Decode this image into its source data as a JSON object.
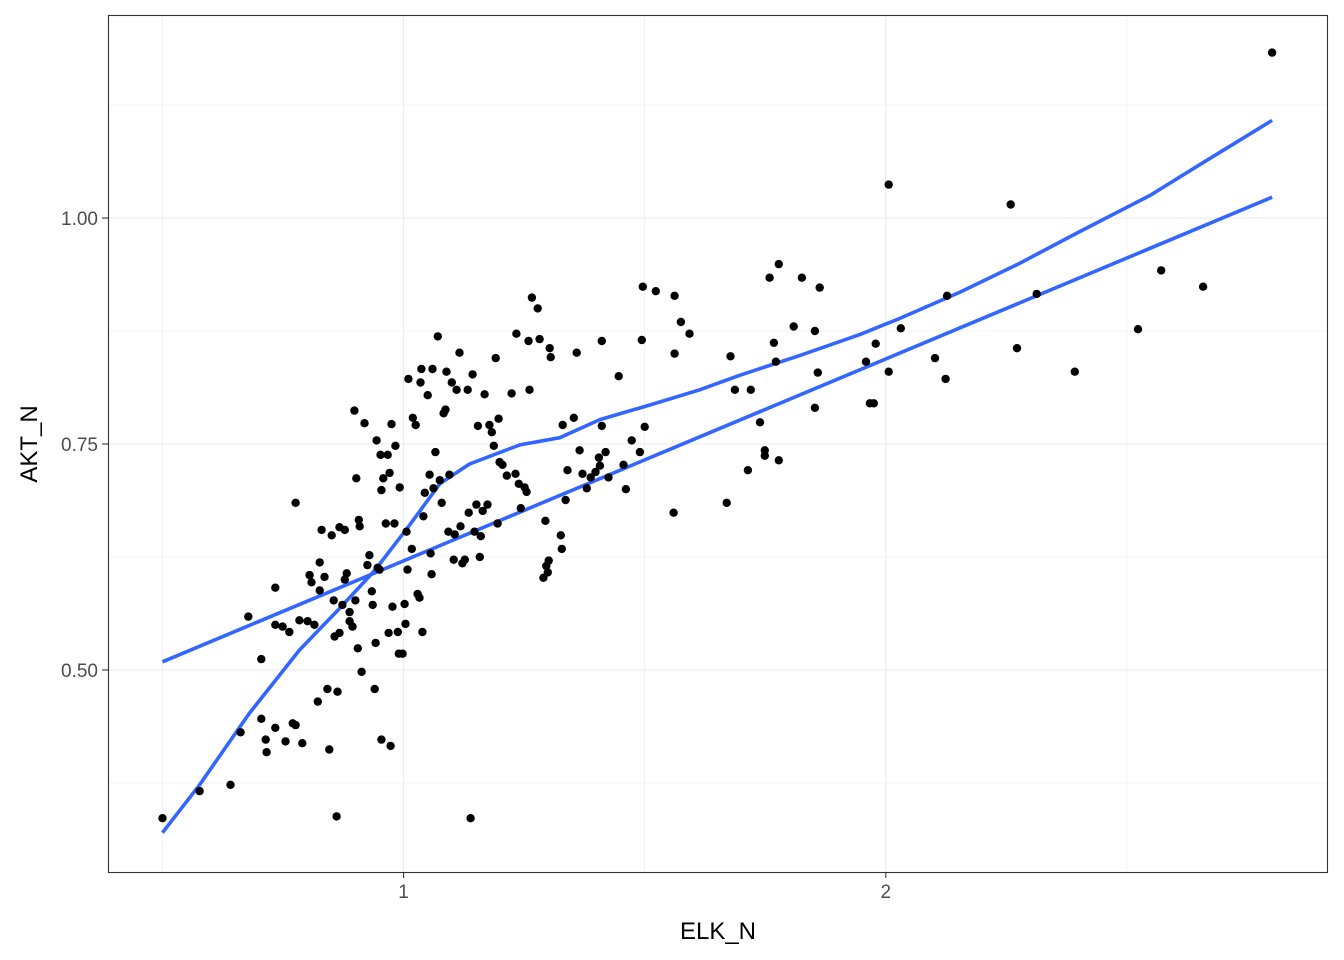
{
  "chart_data": {
    "type": "scatter",
    "title": "",
    "xlabel": "ELK_N",
    "ylabel": "AKT_N",
    "xlim": [
      0.387,
      2.917
    ],
    "ylim": [
      0.2765,
      1.2246
    ],
    "x_ticks": [
      1,
      2
    ],
    "x_tick_labels": [
      "1",
      "2"
    ],
    "x_minor_ticks": [
      0.5,
      1.5,
      2.5
    ],
    "y_ticks": [
      0.5,
      0.75,
      1.0
    ],
    "y_tick_labels": [
      "0.50",
      "0.75",
      "1.00"
    ],
    "y_minor_ticks": [
      0.375,
      0.625,
      0.875,
      1.125
    ],
    "grid": true,
    "legend": "none",
    "colors": {
      "points": "#000000",
      "lines": "#3366FF",
      "grid": "#EBEBEB",
      "border": "#333333"
    },
    "points": [
      [
        0.5,
        0.336
      ],
      [
        0.577,
        0.366
      ],
      [
        0.641,
        0.373
      ],
      [
        0.662,
        0.431
      ],
      [
        0.678,
        0.559
      ],
      [
        0.705,
        0.512
      ],
      [
        0.705,
        0.446
      ],
      [
        0.714,
        0.423
      ],
      [
        0.716,
        0.409
      ],
      [
        0.734,
        0.591
      ],
      [
        0.734,
        0.55
      ],
      [
        0.734,
        0.436
      ],
      [
        0.749,
        0.548
      ],
      [
        0.755,
        0.421
      ],
      [
        0.763,
        0.542
      ],
      [
        0.77,
        0.441
      ],
      [
        0.776,
        0.685
      ],
      [
        0.776,
        0.439
      ],
      [
        0.784,
        0.555
      ],
      [
        0.79,
        0.419
      ],
      [
        0.801,
        0.554
      ],
      [
        0.805,
        0.605
      ],
      [
        0.809,
        0.597
      ],
      [
        0.815,
        0.55
      ],
      [
        0.822,
        0.465
      ],
      [
        0.826,
        0.619
      ],
      [
        0.826,
        0.588
      ],
      [
        0.83,
        0.655
      ],
      [
        0.836,
        0.603
      ],
      [
        0.842,
        0.479
      ],
      [
        0.846,
        0.412
      ],
      [
        0.851,
        0.649
      ],
      [
        0.855,
        0.577
      ],
      [
        0.857,
        0.537
      ],
      [
        0.861,
        0.338
      ],
      [
        0.863,
        0.476
      ],
      [
        0.867,
        0.658
      ],
      [
        0.867,
        0.541
      ],
      [
        0.873,
        0.572
      ],
      [
        0.878,
        0.655
      ],
      [
        0.878,
        0.6
      ],
      [
        0.882,
        0.607
      ],
      [
        0.888,
        0.564
      ],
      [
        0.888,
        0.554
      ],
      [
        0.894,
        0.548
      ],
      [
        0.898,
        0.787
      ],
      [
        0.9,
        0.577
      ],
      [
        0.902,
        0.712
      ],
      [
        0.905,
        0.524
      ],
      [
        0.907,
        0.666
      ],
      [
        0.909,
        0.659
      ],
      [
        0.913,
        0.498
      ],
      [
        0.919,
        0.773
      ],
      [
        0.925,
        0.616
      ],
      [
        0.929,
        0.627
      ],
      [
        0.934,
        0.587
      ],
      [
        0.936,
        0.572
      ],
      [
        0.94,
        0.479
      ],
      [
        0.942,
        0.53
      ],
      [
        0.944,
        0.754
      ],
      [
        0.946,
        0.613
      ],
      [
        0.95,
        0.611
      ],
      [
        0.952,
        0.738
      ],
      [
        0.954,
        0.699
      ],
      [
        0.954,
        0.423
      ],
      [
        0.958,
        0.712
      ],
      [
        0.963,
        0.662
      ],
      [
        0.967,
        0.738
      ],
      [
        0.969,
        0.541
      ],
      [
        0.971,
        0.718
      ],
      [
        0.973,
        0.416
      ],
      [
        0.975,
        0.772
      ],
      [
        0.977,
        0.57
      ],
      [
        0.981,
        0.662
      ],
      [
        0.983,
        0.748
      ],
      [
        0.988,
        0.542
      ],
      [
        0.99,
        0.518
      ],
      [
        0.992,
        0.702
      ],
      [
        0.998,
        0.518
      ],
      [
        1.002,
        0.573
      ],
      [
        1.004,
        0.551
      ],
      [
        1.006,
        0.653
      ],
      [
        1.008,
        0.611
      ],
      [
        1.01,
        0.822
      ],
      [
        1.017,
        0.634
      ],
      [
        1.019,
        0.779
      ],
      [
        1.025,
        0.771
      ],
      [
        1.029,
        0.584
      ],
      [
        1.033,
        0.58
      ],
      [
        1.035,
        0.818
      ],
      [
        1.037,
        0.833
      ],
      [
        1.039,
        0.542
      ],
      [
        1.041,
        0.67
      ],
      [
        1.044,
        0.696
      ],
      [
        1.05,
        0.804
      ],
      [
        1.054,
        0.716
      ],
      [
        1.056,
        0.629
      ],
      [
        1.058,
        0.606
      ],
      [
        1.06,
        0.833
      ],
      [
        1.062,
        0.701
      ],
      [
        1.066,
        0.741
      ],
      [
        1.071,
        0.869
      ],
      [
        1.075,
        0.71
      ],
      [
        1.079,
        0.685
      ],
      [
        1.083,
        0.784
      ],
      [
        1.087,
        0.788
      ],
      [
        1.089,
        0.83
      ],
      [
        1.093,
        0.653
      ],
      [
        1.095,
        0.716
      ],
      [
        1.1,
        0.818
      ],
      [
        1.104,
        0.622
      ],
      [
        1.106,
        0.65
      ],
      [
        1.11,
        0.81
      ],
      [
        1.116,
        0.851
      ],
      [
        1.118,
        0.659
      ],
      [
        1.122,
        0.618
      ],
      [
        1.127,
        0.622
      ],
      [
        1.133,
        0.81
      ],
      [
        1.135,
        0.674
      ],
      [
        1.139,
        0.336
      ],
      [
        1.143,
        0.827
      ],
      [
        1.147,
        0.653
      ],
      [
        1.151,
        0.683
      ],
      [
        1.154,
        0.77
      ],
      [
        1.158,
        0.625
      ],
      [
        1.16,
        0.648
      ],
      [
        1.164,
        0.676
      ],
      [
        1.168,
        0.805
      ],
      [
        1.174,
        0.683
      ],
      [
        1.178,
        0.771
      ],
      [
        1.183,
        0.763
      ],
      [
        1.187,
        0.748
      ],
      [
        1.191,
        0.845
      ],
      [
        1.195,
        0.662
      ],
      [
        1.197,
        0.778
      ],
      [
        1.199,
        0.73
      ],
      [
        1.205,
        0.727
      ],
      [
        1.214,
        0.715
      ],
      [
        1.224,
        0.806
      ],
      [
        1.232,
        0.717
      ],
      [
        1.234,
        0.872
      ],
      [
        1.239,
        0.706
      ],
      [
        1.243,
        0.679
      ],
      [
        1.251,
        0.702
      ],
      [
        1.255,
        0.697
      ],
      [
        1.259,
        0.864
      ],
      [
        1.261,
        0.81
      ],
      [
        1.266,
        0.912
      ],
      [
        1.278,
        0.9
      ],
      [
        1.282,
        0.866
      ],
      [
        1.29,
        0.602
      ],
      [
        1.294,
        0.665
      ],
      [
        1.296,
        0.615
      ],
      [
        1.299,
        0.608
      ],
      [
        1.301,
        0.621
      ],
      [
        1.303,
        0.856
      ],
      [
        1.305,
        0.846
      ],
      [
        1.326,
        0.649
      ],
      [
        1.328,
        0.634
      ],
      [
        1.33,
        0.771
      ],
      [
        1.336,
        0.688
      ],
      [
        1.34,
        0.721
      ],
      [
        1.353,
        0.779
      ],
      [
        1.359,
        0.851
      ],
      [
        1.365,
        0.743
      ],
      [
        1.371,
        0.717
      ],
      [
        1.38,
        0.701
      ],
      [
        1.388,
        0.713
      ],
      [
        1.398,
        0.719
      ],
      [
        1.405,
        0.735
      ],
      [
        1.407,
        0.726
      ],
      [
        1.411,
        0.77
      ],
      [
        1.411,
        0.864
      ],
      [
        1.419,
        0.741
      ],
      [
        1.425,
        0.713
      ],
      [
        1.446,
        0.825
      ],
      [
        1.456,
        0.727
      ],
      [
        1.461,
        0.7
      ],
      [
        1.473,
        0.754
      ],
      [
        1.49,
        0.741
      ],
      [
        1.494,
        0.865
      ],
      [
        1.496,
        0.924
      ],
      [
        1.5,
        0.769
      ],
      [
        1.523,
        0.919
      ],
      [
        1.56,
        0.674
      ],
      [
        1.562,
        0.914
      ],
      [
        1.562,
        0.85
      ],
      [
        1.575,
        0.885
      ],
      [
        1.593,
        0.872
      ],
      [
        1.67,
        0.685
      ],
      [
        1.678,
        0.847
      ],
      [
        1.687,
        0.81
      ],
      [
        1.714,
        0.721
      ],
      [
        1.72,
        0.81
      ],
      [
        1.739,
        0.774
      ],
      [
        1.749,
        0.743
      ],
      [
        1.749,
        0.737
      ],
      [
        1.759,
        0.934
      ],
      [
        1.768,
        0.862
      ],
      [
        1.772,
        0.841
      ],
      [
        1.778,
        0.949
      ],
      [
        1.778,
        0.732
      ],
      [
        1.809,
        0.88
      ],
      [
        1.826,
        0.934
      ],
      [
        1.853,
        0.875
      ],
      [
        1.853,
        0.79
      ],
      [
        1.859,
        0.829
      ],
      [
        1.863,
        0.923
      ],
      [
        1.959,
        0.841
      ],
      [
        1.967,
        0.795
      ],
      [
        1.975,
        0.795
      ],
      [
        1.979,
        0.861
      ],
      [
        2.006,
        1.037
      ],
      [
        2.006,
        0.83
      ],
      [
        2.031,
        0.878
      ],
      [
        2.102,
        0.845
      ],
      [
        2.124,
        0.822
      ],
      [
        2.127,
        0.914
      ],
      [
        2.259,
        1.015
      ],
      [
        2.272,
        0.856
      ],
      [
        2.313,
        0.916
      ],
      [
        2.392,
        0.83
      ],
      [
        2.523,
        0.877
      ],
      [
        2.571,
        0.942
      ],
      [
        2.658,
        0.924
      ],
      [
        2.801,
        1.183
      ]
    ],
    "lines": [
      {
        "kind": "linear",
        "x": [
          0.5,
          2.801
        ],
        "y": [
          0.509,
          1.023
        ]
      },
      {
        "kind": "loess",
        "x": [
          0.5,
          0.577,
          0.68,
          0.784,
          0.867,
          0.94,
          1.012,
          1.075,
          1.137,
          1.241,
          1.324,
          1.407,
          1.51,
          1.614,
          1.697,
          1.822,
          1.946,
          2.029,
          2.154,
          2.278,
          2.402,
          2.548,
          2.651,
          2.801
        ],
        "y": [
          0.32,
          0.373,
          0.452,
          0.522,
          0.568,
          0.61,
          0.66,
          0.706,
          0.728,
          0.749,
          0.757,
          0.777,
          0.793,
          0.81,
          0.826,
          0.848,
          0.871,
          0.889,
          0.918,
          0.95,
          0.985,
          1.025,
          1.059,
          1.108
        ]
      }
    ]
  }
}
